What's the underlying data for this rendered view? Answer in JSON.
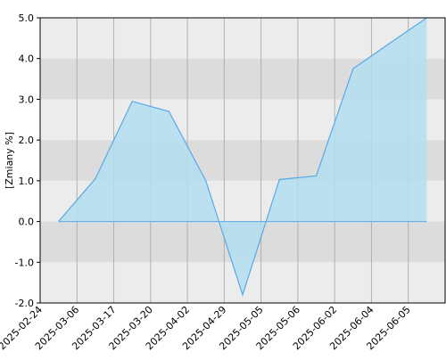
{
  "chart_data": {
    "type": "area",
    "ylabel": "[Zmiany %]",
    "categories": [
      "2025-02-24",
      "2025-03-06",
      "2025-03-17",
      "2025-03-20",
      "2025-04-02",
      "2025-04-29",
      "2025-05-05",
      "2025-05-06",
      "2025-06-02",
      "2025-06-04",
      "2025-06-05"
    ],
    "values": [
      0.0,
      1.05,
      2.95,
      2.7,
      1.0,
      -1.8,
      1.03,
      1.12,
      3.75,
      4.38,
      5.0
    ],
    "color": "#5aa9e6",
    "fill": "#b3def0",
    "ylim": [
      -2,
      5
    ],
    "yticks": [
      {
        "value": -2,
        "label": "-2.0"
      },
      {
        "value": -1,
        "label": "-1.0"
      },
      {
        "value": 0,
        "label": "0.0"
      },
      {
        "value": 1,
        "label": "1.0"
      },
      {
        "value": 2,
        "label": "2.0"
      },
      {
        "value": 3,
        "label": "3.0"
      },
      {
        "value": 4,
        "label": "4.0"
      },
      {
        "value": 5,
        "label": "5.0"
      }
    ],
    "grid": true
  }
}
